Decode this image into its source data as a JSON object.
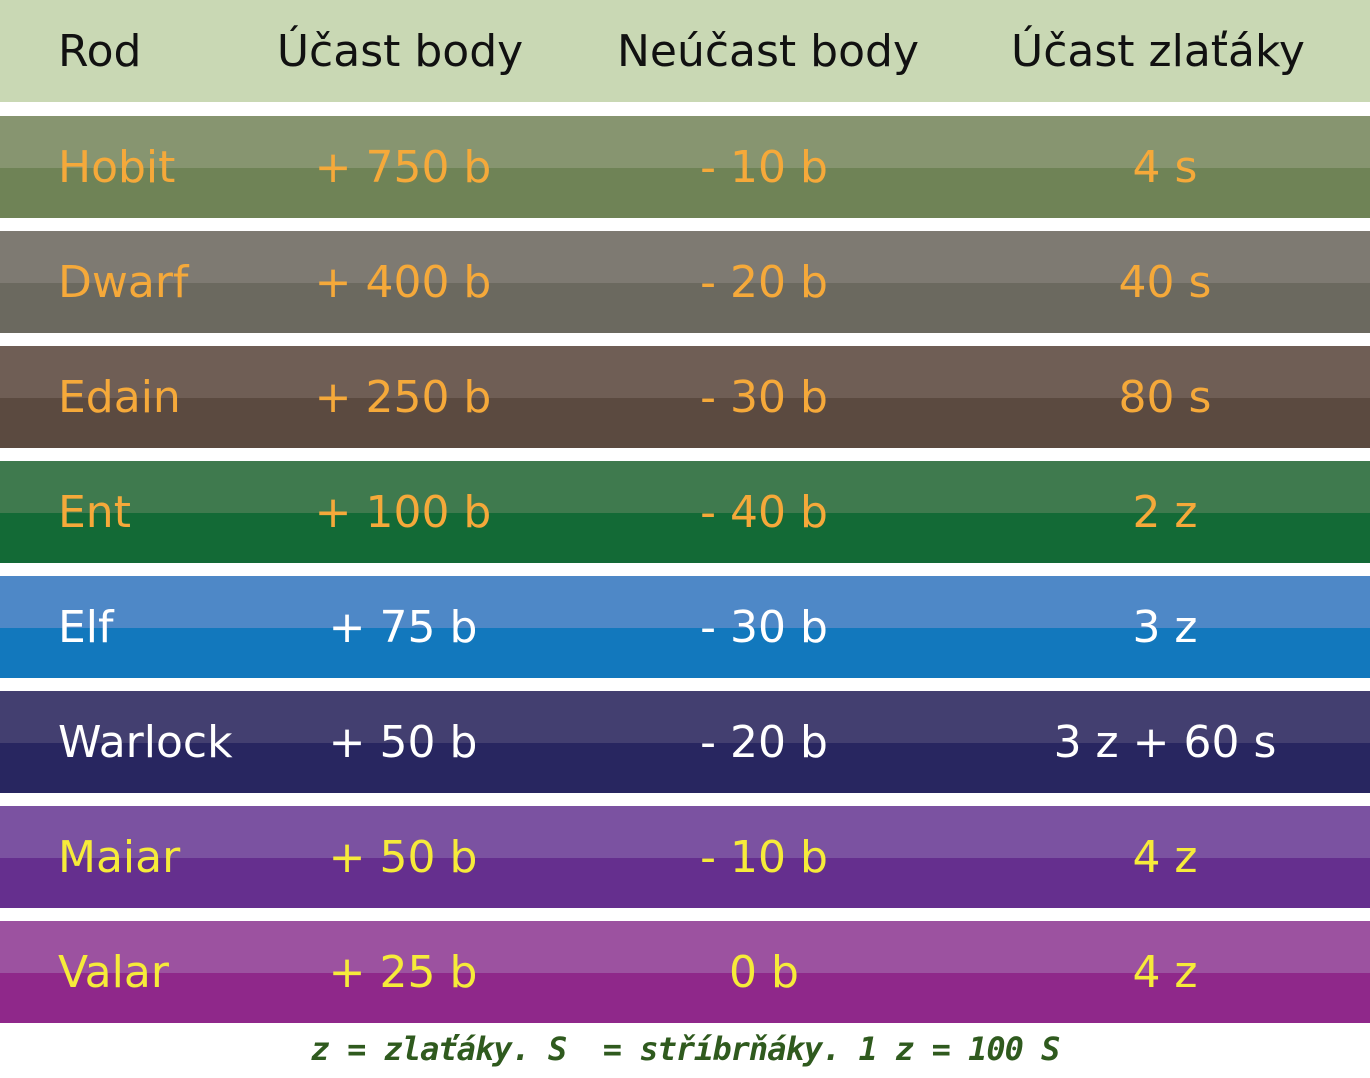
{
  "table": {
    "header": [
      "Rod",
      "Účast body",
      "Neúčast body",
      "Účast zlaťáky"
    ],
    "rows": [
      [
        "Hobit",
        "+ 750 b",
        "- 10 b",
        "4 s"
      ],
      [
        "Dwarf",
        "+ 400 b",
        "- 20 b",
        "40 s"
      ],
      [
        "Edain",
        "+ 250 b",
        "- 30 b",
        "80 s"
      ],
      [
        "Ent",
        "+ 100 b",
        "- 40 b",
        "2 z"
      ],
      [
        "Elf",
        "+ 75 b",
        "- 30 b",
        "3 z"
      ],
      [
        "Warlock",
        "+ 50 b",
        "- 20 b",
        "3 z + 60 s"
      ],
      [
        "Maiar",
        "+ 50 b",
        "- 10 b",
        "4 z"
      ],
      [
        "Valar",
        "+ 25 b",
        "0 b",
        "4 z"
      ]
    ]
  },
  "footer": "z = zlaťáky. S  = stříbrňáky. 1 z = 100 S"
}
